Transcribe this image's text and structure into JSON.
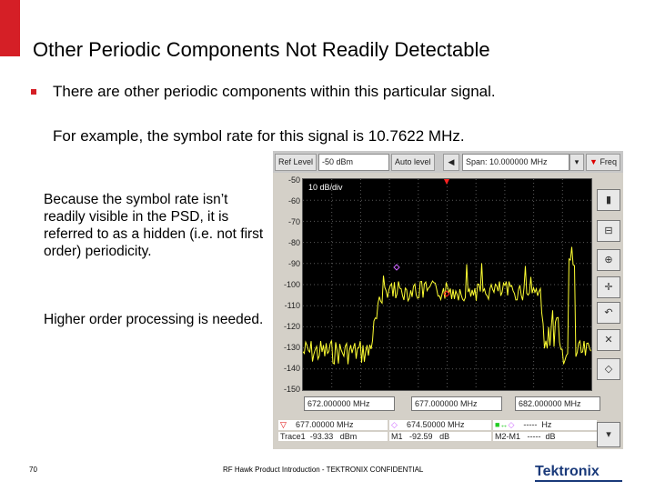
{
  "slide": {
    "title": "Other Periodic Components Not Readily Detectable",
    "bullet": "There are other periodic components within this particular signal.",
    "subtext": "For example, the symbol rate for this signal is 10.7622 MHz.",
    "para1_a": "Because the symbol rate isn’t readily visible in the PSD, it is referred to as a ",
    "para1_bold": "hidden",
    "para1_b": " (i.e. not first order) periodicity.",
    "para2": "Higher order processing is needed.",
    "page_number": "70",
    "footer": "RF Hawk Product Introduction - TEKTRONIX CONFIDENTIAL",
    "logo_text": "Tektronix"
  },
  "analyzer": {
    "ref_level_label": "Ref Level",
    "ref_level_value": "-50 dBm",
    "auto_level_label": "Auto level",
    "span_value": "Span: 10.000000 MHz",
    "freq_button": "Freq",
    "scale_label": "10 dB/div",
    "y_ticks": [
      "-50",
      "-60",
      "-70",
      "-80",
      "-90",
      "-100",
      "-110",
      "-120",
      "-130",
      "-140",
      "-150"
    ],
    "freq_start": "672.000000 MHz",
    "freq_center": "677.000000 MHz",
    "freq_stop": "682.000000 MHz",
    "marker_trace_label": "Trace1",
    "marker_freq": "677.00000 MHz",
    "marker_val": "-93.33",
    "marker_val_unit": "dBm",
    "m1_label": "M1",
    "m1_freq": "674.50000 MHz",
    "m1_val": "-92.59",
    "m1_unit": "dB",
    "delta_label": "M2-M1",
    "delta_freq": "-----",
    "delta_freq_unit": "Hz",
    "delta_val": "-----",
    "delta_unit": "dB",
    "colors": {
      "trace": "#ffff33",
      "grid": "#5a5a5a",
      "marker_red": "#ff2020",
      "marker_violet": "#cc66ff"
    },
    "side_icons": [
      "spectrum-icon",
      "zoom-out-icon",
      "zoom-in-icon",
      "pan-icon",
      "undo-icon",
      "close-icon",
      "markers-icon"
    ]
  }
}
